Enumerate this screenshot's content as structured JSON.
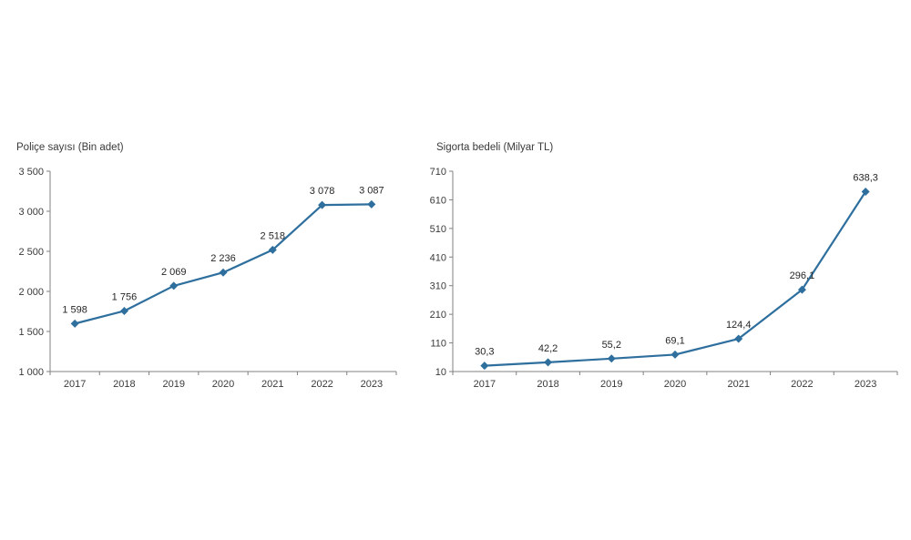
{
  "page": {
    "background": "#ffffff"
  },
  "chart_data": [
    {
      "type": "line",
      "title": "Poliçe sayısı (Bin adet)",
      "categories": [
        "2017",
        "2018",
        "2019",
        "2020",
        "2021",
        "2022",
        "2023"
      ],
      "values": [
        1598,
        1756,
        2069,
        2236,
        2518,
        3078,
        3087
      ],
      "value_labels": [
        "1 598",
        "1 756",
        "2 069",
        "2 236",
        "2 518",
        "3 078",
        "3 087"
      ],
      "ylim": [
        1000,
        3500
      ],
      "ystep": 500,
      "ytick_labels": [
        "1 000",
        "1 500",
        "2 000",
        "2 500",
        "3 000",
        "3 500"
      ],
      "xlabel": "",
      "ylabel": "",
      "grid": false,
      "legend": "none",
      "marker": "diamond",
      "color": "#2e6f9e"
    },
    {
      "type": "line",
      "title": "Sigorta bedeli (Milyar TL)",
      "categories": [
        "2017",
        "2018",
        "2019",
        "2020",
        "2021",
        "2022",
        "2023"
      ],
      "values": [
        30.3,
        42.2,
        55.2,
        69.1,
        124.4,
        296.1,
        638.3
      ],
      "value_labels": [
        "30,3",
        "42,2",
        "55,2",
        "69,1",
        "124,4",
        "296,1",
        "638,3"
      ],
      "ylim": [
        10,
        710
      ],
      "ystep": 100,
      "ytick_labels": [
        "10",
        "110",
        "210",
        "310",
        "410",
        "510",
        "610",
        "710"
      ],
      "xlabel": "",
      "ylabel": "",
      "grid": false,
      "legend": "none",
      "marker": "diamond",
      "color": "#2e6f9e"
    }
  ]
}
